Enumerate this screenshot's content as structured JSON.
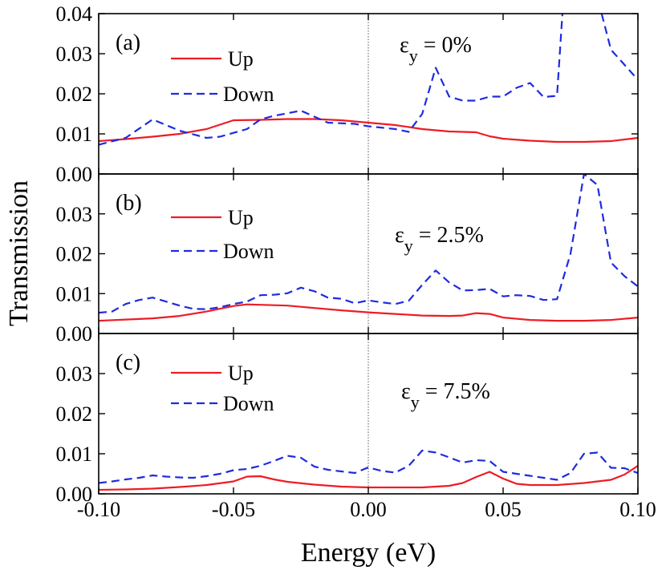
{
  "chart_data": [
    {
      "type": "line",
      "panel_label": "(a)",
      "annotation": {
        "symbol": "ε",
        "sub": "y",
        "rest": " = 0%"
      },
      "xlim": [
        -0.1,
        0.1
      ],
      "ylim": [
        0,
        0.04
      ],
      "y_ticks": [
        "0.00",
        "0.01",
        "0.02",
        "0.03",
        "0.04"
      ],
      "y_tick_values": [
        0,
        0.01,
        0.02,
        0.03,
        0.04
      ],
      "series": [
        {
          "name": "Up",
          "color": "#ee1c25",
          "style": "solid",
          "x": [
            -0.1,
            -0.09,
            -0.08,
            -0.07,
            -0.06,
            -0.05,
            -0.04,
            -0.03,
            -0.02,
            -0.01,
            0.0,
            0.01,
            0.02,
            0.03,
            0.04,
            0.045,
            0.05,
            0.06,
            0.07,
            0.08,
            0.09,
            0.1
          ],
          "y": [
            0.0082,
            0.0087,
            0.0093,
            0.01,
            0.0112,
            0.0134,
            0.0135,
            0.0137,
            0.0137,
            0.0134,
            0.0128,
            0.0122,
            0.0112,
            0.0106,
            0.0104,
            0.0094,
            0.0088,
            0.0083,
            0.008,
            0.008,
            0.0082,
            0.009
          ]
        },
        {
          "name": "Down",
          "color": "#1f2be0",
          "style": "dashed",
          "x": [
            -0.1,
            -0.09,
            -0.08,
            -0.07,
            -0.06,
            -0.055,
            -0.045,
            -0.04,
            -0.035,
            -0.025,
            -0.015,
            -0.005,
            0.0,
            0.01,
            0.015,
            0.02,
            0.025,
            0.03,
            0.035,
            0.04,
            0.045,
            0.05,
            0.055,
            0.06,
            0.065,
            0.07,
            0.072,
            0.075,
            0.085,
            0.09,
            0.1
          ],
          "y": [
            0.0073,
            0.009,
            0.0136,
            0.0108,
            0.009,
            0.0093,
            0.0112,
            0.0136,
            0.0145,
            0.0158,
            0.0128,
            0.0125,
            0.0119,
            0.0112,
            0.0105,
            0.015,
            0.0265,
            0.0193,
            0.0183,
            0.0183,
            0.0193,
            0.0193,
            0.0215,
            0.0227,
            0.0192,
            0.0195,
            0.04,
            0.044,
            0.044,
            0.031,
            0.0235
          ]
        }
      ]
    },
    {
      "type": "line",
      "panel_label": "(b)",
      "annotation": {
        "symbol": "ε",
        "sub": "y",
        "rest": " = 2.5%"
      },
      "xlim": [
        -0.1,
        0.1
      ],
      "ylim": [
        0,
        0.04
      ],
      "y_ticks": [
        "0.00",
        "0.01",
        "0.02",
        "0.03"
      ],
      "y_tick_values": [
        0,
        0.01,
        0.02,
        0.03
      ],
      "series": [
        {
          "name": "Up",
          "color": "#ee1c25",
          "style": "solid",
          "x": [
            -0.1,
            -0.09,
            -0.08,
            -0.07,
            -0.06,
            -0.05,
            -0.045,
            -0.04,
            -0.03,
            -0.02,
            -0.01,
            0.0,
            0.01,
            0.02,
            0.03,
            0.035,
            0.04,
            0.045,
            0.05,
            0.06,
            0.07,
            0.08,
            0.09,
            0.1
          ],
          "y": [
            0.0032,
            0.0035,
            0.0038,
            0.0044,
            0.0055,
            0.0069,
            0.0073,
            0.0072,
            0.007,
            0.0064,
            0.0058,
            0.0053,
            0.0049,
            0.0045,
            0.0044,
            0.0045,
            0.0051,
            0.0049,
            0.004,
            0.0034,
            0.0032,
            0.0032,
            0.0034,
            0.004
          ]
        },
        {
          "name": "Down",
          "color": "#1f2be0",
          "style": "dashed",
          "x": [
            -0.1,
            -0.095,
            -0.09,
            -0.085,
            -0.08,
            -0.075,
            -0.07,
            -0.065,
            -0.06,
            -0.055,
            -0.05,
            -0.045,
            -0.04,
            -0.035,
            -0.03,
            -0.025,
            -0.02,
            -0.015,
            -0.01,
            -0.005,
            0.0,
            0.005,
            0.01,
            0.015,
            0.02,
            0.025,
            0.03,
            0.035,
            0.04,
            0.045,
            0.05,
            0.055,
            0.06,
            0.065,
            0.07,
            0.075,
            0.08,
            0.085,
            0.09,
            0.095,
            0.1
          ],
          "y": [
            0.0052,
            0.0055,
            0.0074,
            0.0084,
            0.009,
            0.008,
            0.007,
            0.0062,
            0.0061,
            0.0066,
            0.0074,
            0.008,
            0.0096,
            0.0097,
            0.0101,
            0.0115,
            0.0106,
            0.009,
            0.0087,
            0.0076,
            0.0083,
            0.0078,
            0.0074,
            0.0082,
            0.0122,
            0.0158,
            0.0128,
            0.0108,
            0.0109,
            0.0112,
            0.0093,
            0.0096,
            0.0094,
            0.0084,
            0.0086,
            0.02,
            0.04,
            0.0372,
            0.0178,
            0.0144,
            0.0118
          ]
        }
      ]
    },
    {
      "type": "line",
      "panel_label": "(c)",
      "annotation": {
        "symbol": "ε",
        "sub": "y",
        "rest": " = 7.5%"
      },
      "xlim": [
        -0.1,
        0.1
      ],
      "ylim": [
        0,
        0.04
      ],
      "y_ticks": [
        "0.00",
        "0.01",
        "0.02",
        "0.03"
      ],
      "y_tick_values": [
        0,
        0.01,
        0.02,
        0.03
      ],
      "x_ticks": [
        "-0.10",
        "-0.05",
        "0.00",
        "0.05",
        "0.10"
      ],
      "x_tick_values": [
        -0.1,
        -0.05,
        0,
        0.05,
        0.1
      ],
      "xlabel": "Energy (eV)",
      "series": [
        {
          "name": "Up",
          "color": "#ee1c25",
          "style": "solid",
          "x": [
            -0.1,
            -0.09,
            -0.08,
            -0.07,
            -0.06,
            -0.05,
            -0.045,
            -0.04,
            -0.035,
            -0.03,
            -0.02,
            -0.01,
            0.0,
            0.01,
            0.02,
            0.03,
            0.035,
            0.04,
            0.045,
            0.05,
            0.055,
            0.06,
            0.07,
            0.08,
            0.09,
            0.095,
            0.1
          ],
          "y": [
            0.001,
            0.0011,
            0.0013,
            0.0017,
            0.0022,
            0.0031,
            0.0043,
            0.0044,
            0.0036,
            0.003,
            0.0023,
            0.0018,
            0.0016,
            0.0016,
            0.0016,
            0.002,
            0.0027,
            0.0042,
            0.0055,
            0.0038,
            0.0025,
            0.0022,
            0.0022,
            0.0027,
            0.0035,
            0.0048,
            0.007
          ]
        },
        {
          "name": "Down",
          "color": "#1f2be0",
          "style": "dashed",
          "x": [
            -0.1,
            -0.095,
            -0.09,
            -0.085,
            -0.08,
            -0.075,
            -0.07,
            -0.065,
            -0.06,
            -0.055,
            -0.05,
            -0.045,
            -0.04,
            -0.035,
            -0.03,
            -0.025,
            -0.02,
            -0.015,
            -0.01,
            -0.005,
            0.0,
            0.005,
            0.01,
            0.015,
            0.02,
            0.025,
            0.03,
            0.035,
            0.04,
            0.045,
            0.05,
            0.055,
            0.06,
            0.065,
            0.07,
            0.075,
            0.08,
            0.085,
            0.09,
            0.095,
            0.1
          ],
          "y": [
            0.0027,
            0.0031,
            0.0036,
            0.004,
            0.0046,
            0.0043,
            0.0041,
            0.004,
            0.0044,
            0.005,
            0.0059,
            0.0062,
            0.007,
            0.0082,
            0.0095,
            0.009,
            0.0068,
            0.006,
            0.0056,
            0.0052,
            0.0066,
            0.0057,
            0.0053,
            0.007,
            0.0108,
            0.0103,
            0.0091,
            0.0078,
            0.0084,
            0.0082,
            0.0055,
            0.005,
            0.0045,
            0.004,
            0.0035,
            0.0052,
            0.01,
            0.0103,
            0.0065,
            0.0064,
            0.0052
          ]
        }
      ]
    }
  ],
  "ylabel": "Transmission"
}
